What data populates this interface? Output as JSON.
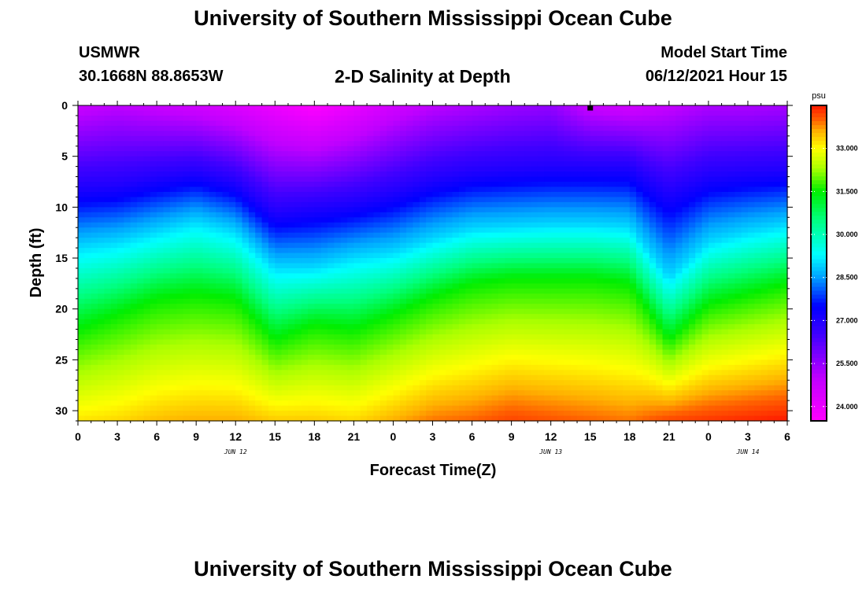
{
  "page": {
    "title_top": "University of Southern Mississippi Ocean Cube",
    "title_bottom": "University of Southern Mississippi Ocean Cube",
    "station": "USMWR",
    "coords": "30.1668N  88.8653W",
    "subtitle": "2-D Salinity at Depth",
    "model_label": "Model Start Time",
    "model_time": "06/12/2021 Hour 15"
  },
  "chart_data": {
    "type": "heatmap",
    "title": "2-D Salinity at Depth",
    "xlabel": "Forecast Time(Z)",
    "ylabel": "Depth (ft)",
    "x_range_hours": [
      0,
      54
    ],
    "y_range_ft": [
      0,
      31
    ],
    "x_tick_labels": [
      "0",
      "3",
      "6",
      "9",
      "12",
      "15",
      "18",
      "21",
      "0",
      "3",
      "6",
      "9",
      "12",
      "15",
      "18",
      "21",
      "0",
      "3",
      "6"
    ],
    "x_tick_hours": [
      0,
      3,
      6,
      9,
      12,
      15,
      18,
      21,
      24,
      27,
      30,
      33,
      36,
      39,
      42,
      45,
      48,
      51,
      54
    ],
    "date_labels": [
      {
        "text": "JUN 12",
        "hour": 12
      },
      {
        "text": "JUN 13",
        "hour": 36
      },
      {
        "text": "JUN 14",
        "hour": 51
      }
    ],
    "y_ticks": [
      0,
      5,
      10,
      15,
      20,
      25,
      30
    ],
    "y_tick_labels": [
      "0",
      "5",
      "10",
      "15",
      "20",
      "25",
      "30"
    ],
    "colorbar": {
      "unit": "psu",
      "range": [
        23.5,
        34.5
      ],
      "tick_values": [
        24.0,
        25.5,
        27.0,
        28.5,
        30.0,
        31.5,
        33.0
      ],
      "tick_labels": [
        "24.000",
        "25.500",
        "27.000",
        "28.500",
        "30.000",
        "31.500",
        "33.000"
      ],
      "colors": [
        [
          23.5,
          "#ff00ff"
        ],
        [
          25.0,
          "#c000ff"
        ],
        [
          26.5,
          "#4000ff"
        ],
        [
          27.5,
          "#0000ff"
        ],
        [
          28.5,
          "#00a0ff"
        ],
        [
          29.3,
          "#00ffff"
        ],
        [
          30.5,
          "#00ff80"
        ],
        [
          31.5,
          "#00ee00"
        ],
        [
          32.3,
          "#aaff00"
        ],
        [
          33.0,
          "#ffff00"
        ],
        [
          33.6,
          "#ffb000"
        ],
        [
          34.0,
          "#ff6000"
        ],
        [
          34.5,
          "#ff1800"
        ]
      ]
    },
    "current_time_marker_hour": 39,
    "transects_ft": {
      "hours": [
        0,
        3,
        6,
        9,
        12,
        15,
        18,
        21,
        24,
        27,
        30,
        33,
        36,
        39,
        42,
        45,
        48,
        51,
        54
      ],
      "top": [
        24.8,
        25.0,
        24.8,
        24.6,
        24.3,
        23.9,
        23.5,
        24.0,
        24.6,
        25.0,
        25.2,
        25.4,
        25.5,
        24.8,
        24.6,
        24.9,
        25.2,
        25.2,
        25.3
      ],
      "h1_ft": [
        8.0,
        7.8,
        7.0,
        6.5,
        7.5,
        10.5,
        10.0,
        9.5,
        8.5,
        7.2,
        6.5,
        6.2,
        6.0,
        6.0,
        6.0,
        8.5,
        6.8,
        6.5,
        6.3
      ],
      "h2_ft": [
        14.0,
        13.5,
        12.5,
        11.5,
        12.5,
        16.0,
        16.0,
        15.0,
        14.5,
        13.2,
        12.2,
        12.0,
        11.8,
        11.8,
        12.0,
        17.0,
        13.5,
        12.5,
        11.8
      ],
      "h3_ft": [
        22.0,
        20.5,
        19.0,
        18.5,
        19.0,
        23.0,
        21.5,
        22.0,
        20.5,
        18.8,
        17.5,
        17.0,
        17.0,
        17.0,
        17.5,
        23.0,
        19.5,
        18.5,
        17.5
      ],
      "bottom": [
        33.2,
        33.3,
        33.5,
        33.6,
        33.6,
        33.4,
        33.4,
        33.3,
        33.6,
        33.9,
        34.0,
        34.2,
        34.1,
        34.0,
        33.9,
        34.2,
        34.3,
        34.4,
        34.5
      ]
    }
  }
}
